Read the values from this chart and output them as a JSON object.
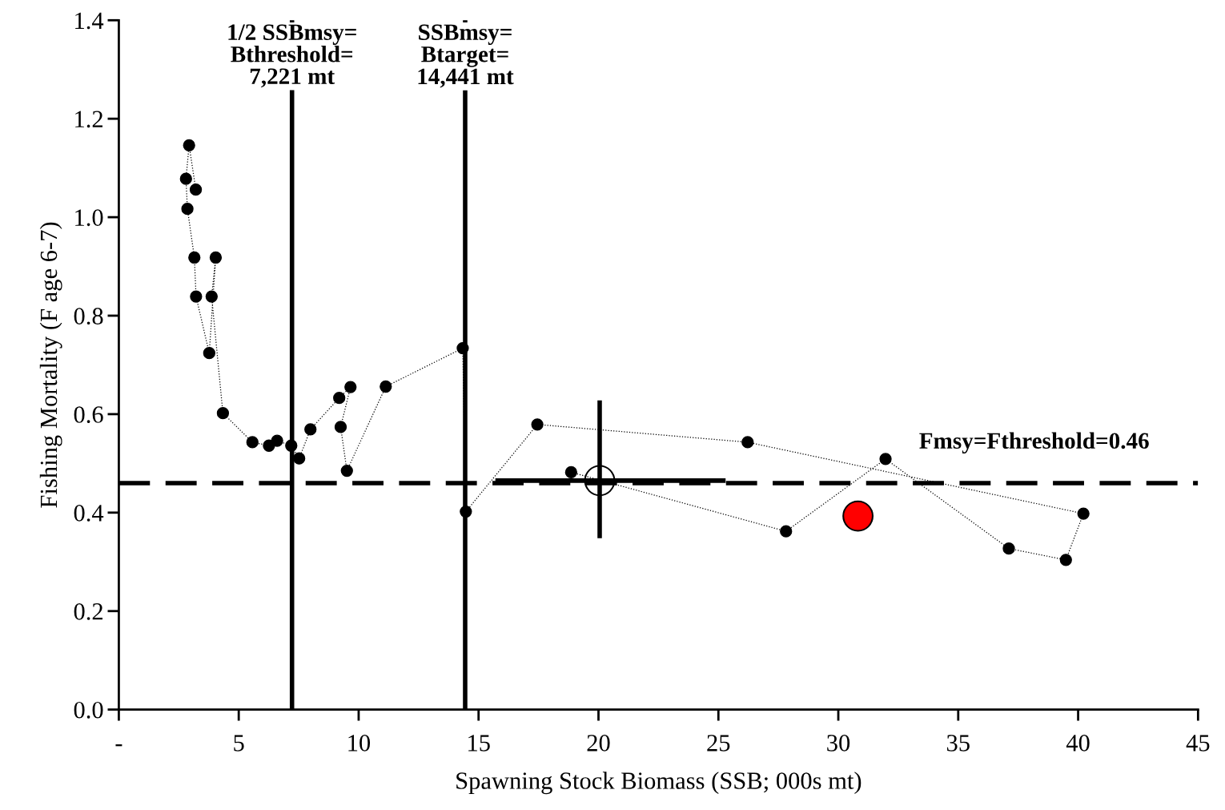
{
  "chart_data": {
    "type": "line",
    "xlabel": "Spawning Stock Biomass (SSB; 000s mt)",
    "ylabel": "Fishing Mortality (F age 6-7)",
    "series": [
      {
        "color": "#000000",
        "marker": "circle",
        "line_style": "dotted",
        "x": [
          3.21,
          2.93,
          2.8,
          2.86,
          3.15,
          3.22,
          3.77,
          4.04,
          3.87,
          4.34,
          5.57,
          6.26,
          6.6,
          7.19,
          7.52,
          7.99,
          9.19,
          9.66,
          9.25,
          9.51,
          11.13,
          14.34,
          14.47,
          17.45,
          26.22,
          40.22,
          39.49,
          37.11,
          31.97,
          27.82,
          18.86
        ],
        "values": [
          1.056,
          1.146,
          1.078,
          1.017,
          0.918,
          0.839,
          0.724,
          0.918,
          0.839,
          0.602,
          0.543,
          0.536,
          0.546,
          0.536,
          0.51,
          0.569,
          0.633,
          0.655,
          0.574,
          0.485,
          0.656,
          0.734,
          0.402,
          0.579,
          0.543,
          0.398,
          0.304,
          0.327,
          0.509,
          0.362,
          0.482
        ]
      },
      {
        "type": "scatter",
        "color": "#000000",
        "marker": "circle",
        "x": [
          20.05
        ],
        "values": [
          0.465
        ],
        "errors": [
          [
            0.348,
            0.628
          ]
        ],
        "xerrors": [
          [
            15.7,
            25.3
          ]
        ]
      },
      {
        "type": "scatter",
        "color": "#ff0000",
        "marker": "circle",
        "x": [
          30.82
        ],
        "values": [
          0.393
        ]
      }
    ],
    "ref_lines": [
      {
        "axis": "x",
        "value": 7.221,
        "label": "1/2 SSBmsy=\nBthreshold=\n7,221 mt",
        "color": "#000000",
        "line_style": "solid"
      },
      {
        "axis": "x",
        "value": 14.441,
        "label": "SSBmsy=\nBtarget=\n14,441 mt",
        "color": "#000000",
        "line_style": "solid"
      },
      {
        "axis": "y",
        "value": 0.46,
        "label": "Fmsy=Fthreshold=0.46",
        "color": "#000000",
        "line_style": "dashed"
      }
    ],
    "xlim": [
      0,
      45
    ],
    "xticks": [
      {
        "value": 0,
        "label": "-"
      },
      5,
      10,
      15,
      20,
      25,
      30,
      35,
      40,
      45
    ],
    "ylim": [
      0,
      1.4
    ],
    "yticks": [
      {
        "value": 0,
        "label": "0.0"
      },
      0.2,
      0.4,
      0.6,
      0.8,
      {
        "value": 1.0,
        "label": "1.0"
      },
      1.2,
      1.4
    ],
    "grid": false,
    "legend": false
  }
}
